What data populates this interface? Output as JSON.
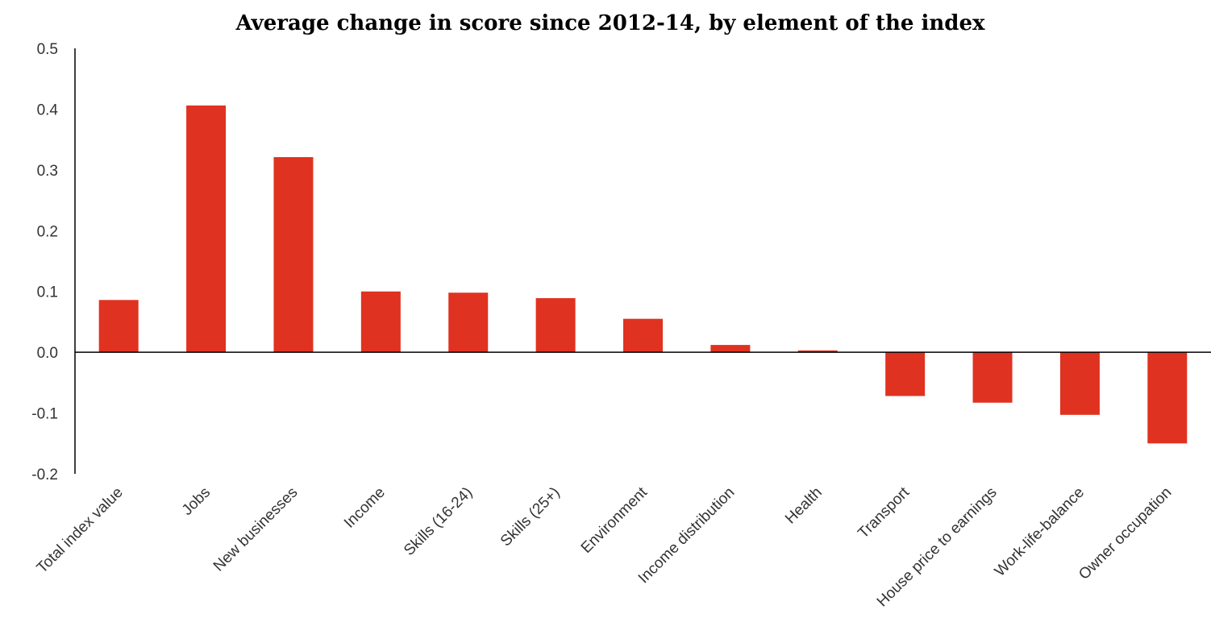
{
  "chart_data": {
    "type": "bar",
    "title": "Average change in score since 2012-14, by element  of the index",
    "xlabel": "",
    "ylabel": "",
    "categories": [
      "Total index value",
      "Jobs",
      "New businesses",
      "Income",
      "Skills (16-24)",
      "Skills  (25+)",
      "Environment",
      "Income distribution",
      "Health",
      "Transport",
      "House price to earnings",
      "Work-life-balance",
      "Owner occupation"
    ],
    "values": [
      0.086,
      0.406,
      0.321,
      0.1,
      0.098,
      0.089,
      0.055,
      0.012,
      0.003,
      -0.072,
      -0.083,
      -0.103,
      -0.15
    ],
    "ylim": [
      -0.2,
      0.5
    ],
    "yticks": [
      "0.5",
      "0.4",
      "0.3",
      "0.2",
      "0.1",
      "0.0",
      "-0.1",
      "-0.2"
    ],
    "ytick_values": [
      0.5,
      0.4,
      0.3,
      0.2,
      0.1,
      0.0,
      -0.1,
      -0.2
    ],
    "bar_color": "#E03220",
    "grid": false,
    "legend": "none"
  }
}
